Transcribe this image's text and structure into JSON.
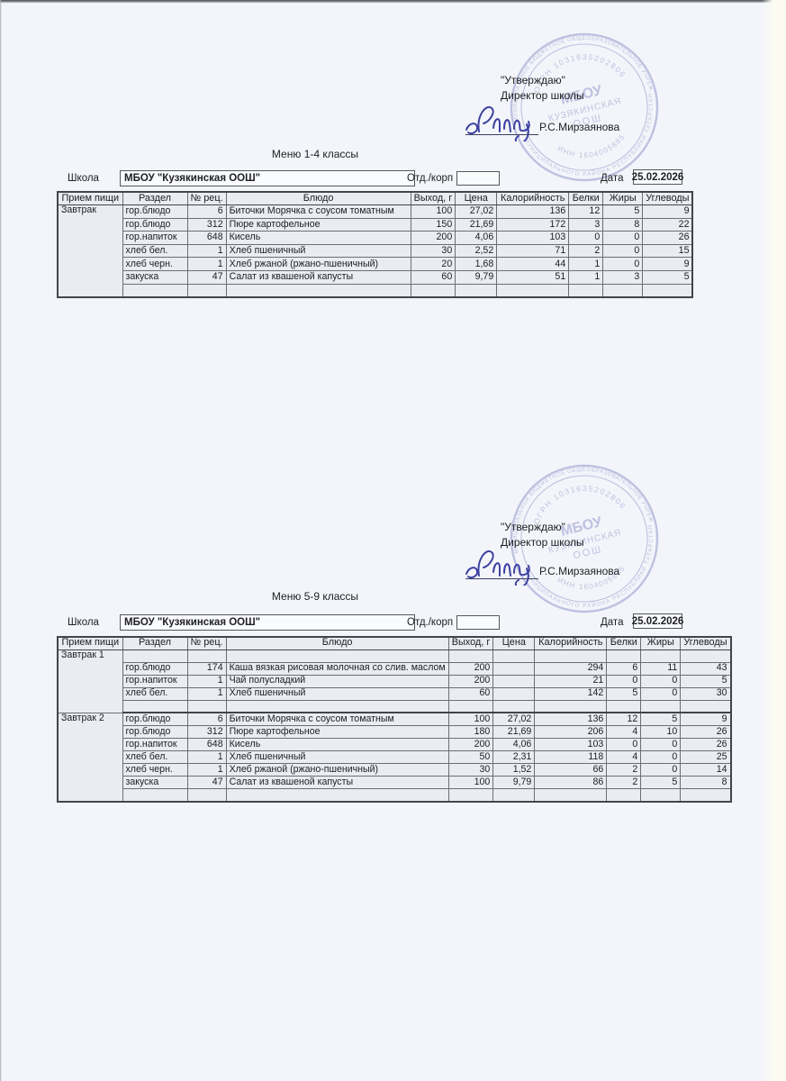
{
  "colors": {
    "page": "#f3f5fa",
    "scan_strip": "#fbfbf2",
    "stamp": "#b5b9dc",
    "signature_ink": "#3d41a0",
    "text": "#202124",
    "border_dark": "#43454a"
  },
  "stamp": {
    "ring_top": "МУНИЦИПАЛЬНОЕ БЮДЖЕТНОЕ ОБЩЕОБРАЗОВАТЕЛЬНОЕ УЧРЕЖДЕНИЕ",
    "ring_bottom": "МУНИЦИПАЛЬНОГО РАЙОНА РЕСПУБЛИКИ ТАТАРСТАН",
    "ogrn_arc": "ОГРН 1031635202806",
    "inn_arc": "ИНН 1604005885",
    "center_line1": "МБОУ",
    "center_line2": "КУЗЯКИНСКАЯ",
    "center_line3": "ООШ"
  },
  "sections": [
    {
      "approval": {
        "line1": "\"Утверждаю\"",
        "line2": "Директор школы",
        "signer": "Р.С.Мирзаянова"
      },
      "title": "Меню 1-4 классы",
      "school_label": "Школа",
      "school_name": "МБОУ \"Кузякинская ООШ\"",
      "dept_label": "Отд./корп",
      "dept_value": "",
      "date_label": "Дата",
      "date_value": "25.02.2026",
      "table": {
        "columns": [
          "Прием пищи",
          "Раздел",
          "№ рец.",
          "Блюдо",
          "Выход, г",
          "Цена",
          "Калорийность",
          "Белки",
          "Жиры",
          "Углеводы"
        ],
        "blocks": [
          {
            "meal": "Завтрак",
            "rows": [
              [
                "гор.блюдо",
                "6",
                "Биточки Морячка с соусом томатным",
                "100",
                "27,02",
                "136",
                "12",
                "5",
                "9"
              ],
              [
                "гор.блюдо",
                "312",
                "Пюре картофельное",
                "150",
                "21,69",
                "172",
                "3",
                "8",
                "22"
              ],
              [
                "гор.напиток",
                "648",
                "Кисель",
                "200",
                "4,06",
                "103",
                "0",
                "0",
                "26"
              ],
              [
                "хлеб бел.",
                "1",
                "Хлеб пшеничный",
                "30",
                "2,52",
                "71",
                "2",
                "0",
                "15"
              ],
              [
                "хлеб черн.",
                "1",
                "Хлеб ржаной (ржано-пшеничный)",
                "20",
                "1,68",
                "44",
                "1",
                "0",
                "9"
              ],
              [
                "закуска",
                "47",
                "Салат из квашеной капусты",
                "60",
                "9,79",
                "51",
                "1",
                "3",
                "5"
              ],
              [
                "",
                "",
                "",
                "",
                "",
                "",
                "",
                "",
                ""
              ]
            ]
          }
        ]
      }
    },
    {
      "approval": {
        "line1": "\"Утверждаю\"",
        "line2": "Директор школы",
        "signer": "Р.С.Мирзаянова"
      },
      "title": "Меню 5-9 классы",
      "school_label": "Школа",
      "school_name": "МБОУ \"Кузякинская ООШ\"",
      "dept_label": "Отд./корп",
      "dept_value": "",
      "date_label": "Дата",
      "date_value": "25.02.2026",
      "table": {
        "columns": [
          "Прием пищи",
          "Раздел",
          "№ рец.",
          "Блюдо",
          "Выход, г",
          "Цена",
          "Калорийность",
          "Белки",
          "Жиры",
          "Углеводы"
        ],
        "blocks": [
          {
            "meal": "Завтрак 1",
            "rows": [
              [
                "",
                "",
                "",
                "",
                "",
                "",
                "",
                "",
                ""
              ],
              [
                "гор.блюдо",
                "174",
                "Каша вязкая рисовая молочная со слив. маслом",
                "200",
                "",
                "294",
                "6",
                "11",
                "43"
              ],
              [
                "гор.напиток",
                "1",
                "Чай полусладкий",
                "200",
                "",
                "21",
                "0",
                "0",
                "5"
              ],
              [
                "хлеб бел.",
                "1",
                "Хлеб пшеничный",
                "60",
                "",
                "142",
                "5",
                "0",
                "30"
              ],
              [
                "",
                "",
                "",
                "",
                "",
                "",
                "",
                "",
                ""
              ]
            ]
          },
          {
            "meal": "Завтрак 2",
            "rows": [
              [
                "гор.блюдо",
                "6",
                "Биточки Морячка с соусом томатным",
                "100",
                "27,02",
                "136",
                "12",
                "5",
                "9"
              ],
              [
                "гор.блюдо",
                "312",
                "Пюре картофельное",
                "180",
                "21,69",
                "206",
                "4",
                "10",
                "26"
              ],
              [
                "гор.напиток",
                "648",
                "Кисель",
                "200",
                "4,06",
                "103",
                "0",
                "0",
                "26"
              ],
              [
                "хлеб бел.",
                "1",
                "Хлеб пшеничный",
                "50",
                "2,31",
                "118",
                "4",
                "0",
                "25"
              ],
              [
                "хлеб черн.",
                "1",
                "Хлеб ржаной (ржано-пшеничный)",
                "30",
                "1,52",
                "66",
                "2",
                "0",
                "14"
              ],
              [
                "закуска",
                "47",
                "Салат из квашеной капусты",
                "100",
                "9,79",
                "86",
                "2",
                "5",
                "8"
              ],
              [
                "",
                "",
                "",
                "",
                "",
                "",
                "",
                "",
                ""
              ]
            ]
          }
        ]
      }
    }
  ]
}
